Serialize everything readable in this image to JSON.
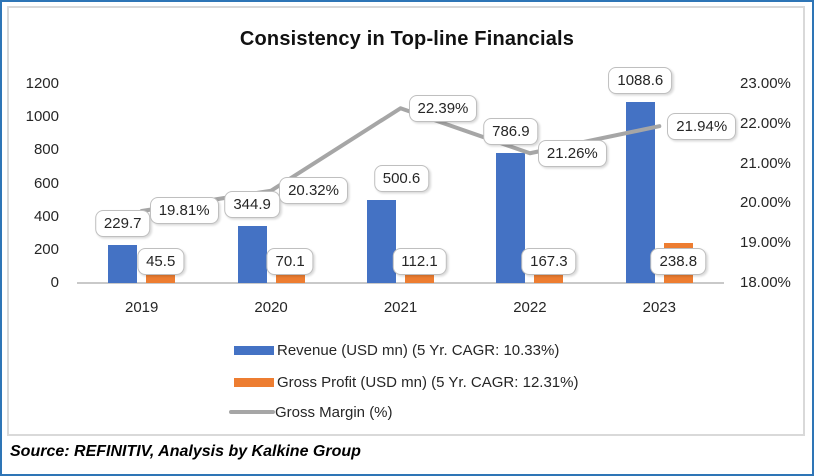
{
  "source_note": "Source: REFINITIV, Analysis by Kalkine Group",
  "colors": {
    "frame_border": "#2E75B6",
    "chart_border": "#D9D9D9",
    "axis_line": "#C9C9C9",
    "callout_border": "#BFBFBF",
    "text": "#262626",
    "revenue_bar": "#4472C4",
    "gross_profit_bar": "#ED7D31",
    "gross_margin_line": "#A6A6A6"
  },
  "chart_data": {
    "type": "bar",
    "subtype": "clustered-bars-with-line",
    "title": "Consistency in Top-line Financials",
    "categories": [
      "2019",
      "2020",
      "2021",
      "2022",
      "2023"
    ],
    "series": [
      {
        "name": "Revenue (USD mn) (5 Yr. CAGR: 10.33%)",
        "type": "bar",
        "axis": "left",
        "color": "#4472C4",
        "values": [
          229.7,
          344.9,
          500.6,
          786.9,
          1088.6
        ],
        "labels": [
          "229.7",
          "344.9",
          "500.6",
          "786.9",
          "1088.6"
        ]
      },
      {
        "name": "Gross Profit (USD mn) (5 Yr. CAGR: 12.31%)",
        "type": "bar",
        "axis": "left",
        "color": "#ED7D31",
        "values": [
          45.5,
          70.1,
          112.1,
          167.3,
          238.8
        ],
        "labels": [
          "45.5",
          "70.1",
          "112.1",
          "167.3",
          "238.8"
        ]
      },
      {
        "name": "Gross Margin (%)",
        "type": "line",
        "axis": "right",
        "color": "#A6A6A6",
        "values": [
          19.81,
          20.32,
          22.39,
          21.26,
          21.94
        ],
        "labels": [
          "19.81%",
          "20.32%",
          "22.39%",
          "21.26%",
          "21.94%"
        ]
      }
    ],
    "left_axis": {
      "min": 0,
      "max": 1200,
      "step": 200,
      "ticks": [
        "0",
        "200",
        "400",
        "600",
        "800",
        "1000",
        "1200"
      ]
    },
    "right_axis": {
      "min": 18,
      "max": 23,
      "step": 1,
      "ticks": [
        "18.00%",
        "19.00%",
        "20.00%",
        "21.00%",
        "22.00%",
        "23.00%"
      ]
    },
    "grid": false,
    "legend_position": "bottom",
    "layout_hints": {
      "revenue_label_dx": [
        0,
        0,
        20,
        0,
        0
      ]
    }
  }
}
